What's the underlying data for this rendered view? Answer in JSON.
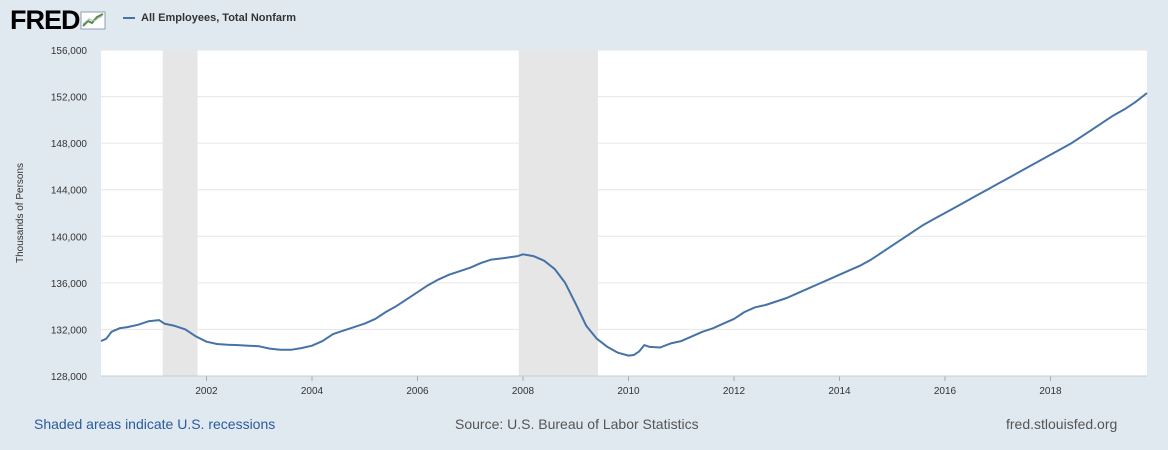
{
  "header": {
    "logo_text": "FRED",
    "legend_label": "All Employees, Total Nonfarm",
    "series_color": "#4572a7"
  },
  "footer": {
    "recession_note": "Shaded areas indicate U.S. recessions",
    "source": "Source: U.S. Bureau of Labor Statistics",
    "site": "fred.stlouisfed.org"
  },
  "chart_data": {
    "type": "line",
    "title": "",
    "xlabel": "",
    "ylabel": "Thousands of Persons",
    "xlim": [
      2000.0,
      2019.83
    ],
    "ylim": [
      128000,
      156000
    ],
    "y_ticks": [
      128000,
      132000,
      136000,
      140000,
      144000,
      148000,
      152000,
      156000
    ],
    "y_tick_labels": [
      "128,000",
      "132,000",
      "136,000",
      "140,000",
      "144,000",
      "148,000",
      "152,000",
      "156,000"
    ],
    "x_ticks": [
      2002,
      2004,
      2006,
      2008,
      2010,
      2012,
      2014,
      2016,
      2018
    ],
    "x_tick_labels": [
      "2002",
      "2004",
      "2006",
      "2008",
      "2010",
      "2012",
      "2014",
      "2016",
      "2018"
    ],
    "grid": true,
    "recessions": [
      [
        2001.17,
        2001.83
      ],
      [
        2007.92,
        2009.42
      ]
    ],
    "recession_color": "#e6e6e6",
    "series": [
      {
        "name": "All Employees, Total Nonfarm",
        "color": "#4572a7",
        "x": [
          2000.0,
          2000.1,
          2000.2,
          2000.35,
          2000.5,
          2000.7,
          2000.9,
          2001.1,
          2001.2,
          2001.4,
          2001.6,
          2001.8,
          2002.0,
          2002.2,
          2002.4,
          2002.6,
          2002.8,
          2003.0,
          2003.2,
          2003.4,
          2003.6,
          2003.8,
          2004.0,
          2004.2,
          2004.4,
          2004.6,
          2004.8,
          2005.0,
          2005.2,
          2005.4,
          2005.6,
          2005.8,
          2006.0,
          2006.2,
          2006.4,
          2006.6,
          2006.8,
          2007.0,
          2007.2,
          2007.4,
          2007.6,
          2007.9,
          2008.0,
          2008.2,
          2008.4,
          2008.6,
          2008.8,
          2009.0,
          2009.2,
          2009.4,
          2009.6,
          2009.8,
          2010.0,
          2010.1,
          2010.2,
          2010.3,
          2010.4,
          2010.6,
          2010.8,
          2011.0,
          2011.2,
          2011.4,
          2011.6,
          2011.8,
          2012.0,
          2012.2,
          2012.4,
          2012.6,
          2012.8,
          2013.0,
          2013.2,
          2013.4,
          2013.6,
          2013.8,
          2014.0,
          2014.2,
          2014.4,
          2014.6,
          2014.8,
          2015.0,
          2015.2,
          2015.4,
          2015.6,
          2015.8,
          2016.0,
          2016.2,
          2016.4,
          2016.6,
          2016.8,
          2017.0,
          2017.2,
          2017.4,
          2017.6,
          2017.8,
          2018.0,
          2018.2,
          2018.4,
          2018.6,
          2018.8,
          2019.0,
          2019.2,
          2019.4,
          2019.6,
          2019.83
        ],
        "y": [
          131000,
          131200,
          131800,
          132100,
          132200,
          132400,
          132700,
          132800,
          132500,
          132300,
          132000,
          131400,
          130950,
          130750,
          130680,
          130650,
          130600,
          130550,
          130350,
          130250,
          130250,
          130400,
          130600,
          131000,
          131600,
          131900,
          132200,
          132500,
          132900,
          133500,
          134000,
          134600,
          135200,
          135800,
          136300,
          136700,
          137000,
          137300,
          137700,
          138000,
          138100,
          138300,
          138450,
          138300,
          137900,
          137200,
          136000,
          134200,
          132300,
          131200,
          130500,
          130000,
          129750,
          129800,
          130100,
          130650,
          130500,
          130450,
          130800,
          131000,
          131400,
          131800,
          132100,
          132500,
          132900,
          133500,
          133900,
          134100,
          134400,
          134700,
          135100,
          135500,
          135900,
          136300,
          136700,
          137100,
          137500,
          138000,
          138600,
          139200,
          139800,
          140400,
          141000,
          141500,
          142000,
          142500,
          143000,
          143500,
          144000,
          144500,
          145000,
          145500,
          146000,
          146500,
          147000,
          147500,
          148000,
          148600,
          149200,
          149800,
          150400,
          150900,
          151500,
          152300
        ]
      }
    ]
  }
}
